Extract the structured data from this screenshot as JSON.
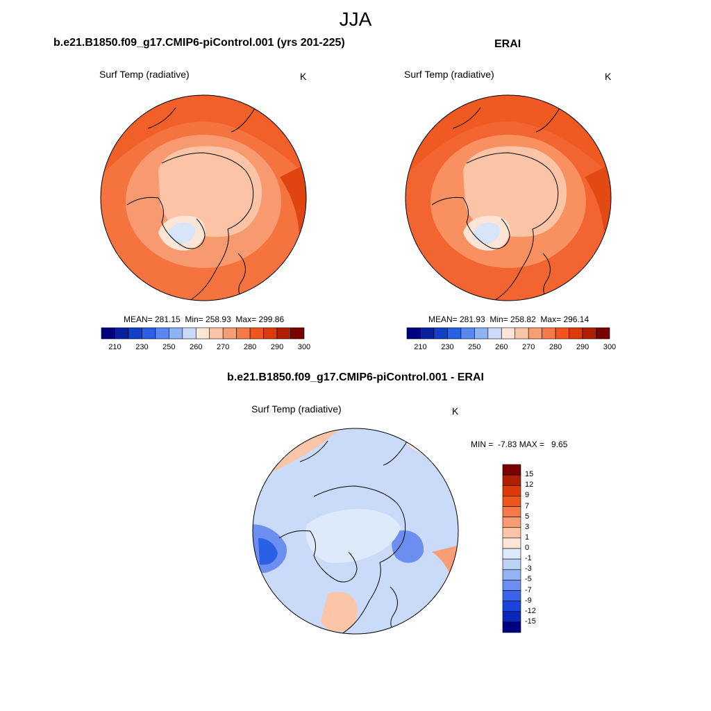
{
  "figure": {
    "title": "JJA"
  },
  "panels": [
    {
      "title": "b.e21.B1850.f09_g17.CMIP6-piControl.001 (yrs 201-225)",
      "variable": "Surf Temp (radiative)",
      "units": "K",
      "stats": "MEAN= 281.15  Min= 258.93  Max= 299.86",
      "mean": 281.15,
      "min": 258.93,
      "max": 299.86
    },
    {
      "title": "ERAI",
      "variable": "Surf Temp (radiative)",
      "units": "K",
      "stats": "MEAN= 281.93  Min= 258.82  Max= 296.14",
      "mean": 281.93,
      "min": 258.82,
      "max": 296.14
    },
    {
      "title": "b.e21.B1850.f09_g17.CMIP6-piControl.001 - ERAI",
      "variable": "Surf Temp (radiative)",
      "units": "K",
      "stats": "MIN =  -7.83 MAX =   9.65",
      "min": -7.83,
      "max": 9.65
    }
  ],
  "colorbar_abs": {
    "colors": [
      "#00007f",
      "#0a1ea0",
      "#1240c8",
      "#2a5fe6",
      "#5a86f0",
      "#8fb2f5",
      "#c9dbf8",
      "#fde6d8",
      "#fbc5a8",
      "#f89d74",
      "#f57a4a",
      "#f0561c",
      "#dd3a0b",
      "#b02000",
      "#7a0000"
    ],
    "tick_labels": [
      "210",
      "230",
      "250",
      "260",
      "270",
      "280",
      "290",
      "300"
    ],
    "tick_positions_index": [
      1,
      2,
      3,
      4,
      5,
      6,
      7,
      8
    ]
  },
  "colorbar_diff": {
    "colors": [
      "#7a0000",
      "#b02000",
      "#dd3a0b",
      "#f0561c",
      "#f57a4a",
      "#f89d74",
      "#fbc5a8",
      "#fde6d8",
      "#ddeafa",
      "#bcd3f6",
      "#93b3f2",
      "#6b8ef0",
      "#3a64ea",
      "#1a44dd",
      "#0a26b8",
      "#000080"
    ],
    "tick_labels": [
      "15",
      "12",
      "9",
      "7",
      "5",
      "3",
      "1",
      "0",
      "-1",
      "-3",
      "-5",
      "-7",
      "-9",
      "-12",
      "-15"
    ]
  }
}
